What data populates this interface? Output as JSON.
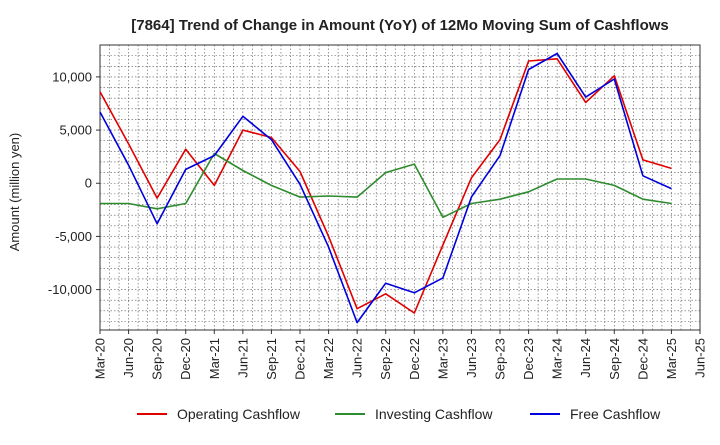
{
  "chart_data": {
    "type": "line",
    "title": "[7864]  Trend of Change in Amount (YoY) of 12Mo Moving Sum of Cashflows",
    "xlabel": "",
    "ylabel": "Amount (million yen)",
    "ylim": [
      -13800,
      13000
    ],
    "yticks": [
      10000,
      5000,
      0,
      -5000,
      -10000
    ],
    "ytick_labels": [
      "10,000",
      "5,000",
      "0",
      "-5,000",
      "-10,000"
    ],
    "grid": true,
    "legend_position": "bottom",
    "categories": [
      "Mar-20",
      "Jun-20",
      "Sep-20",
      "Dec-20",
      "Mar-21",
      "Jun-21",
      "Sep-21",
      "Dec-21",
      "Mar-22",
      "Jun-22",
      "Sep-22",
      "Dec-22",
      "Mar-23",
      "Jun-23",
      "Sep-23",
      "Dec-23",
      "Mar-24",
      "Jun-24",
      "Sep-24",
      "Dec-24",
      "Mar-25",
      "Jun-25"
    ],
    "series": [
      {
        "name": "Operating Cashflow",
        "color": "#e00000",
        "values": [
          8600,
          3700,
          -1400,
          3200,
          -200,
          5000,
          4300,
          1100,
          -5000,
          -11800,
          -10400,
          -12200,
          -5800,
          500,
          4100,
          11500,
          11700,
          7600,
          10100,
          2200,
          1400,
          null
        ]
      },
      {
        "name": "Investing Cashflow",
        "color": "#2e8b2e",
        "values": [
          -1900,
          -1900,
          -2400,
          -1900,
          2800,
          1200,
          -200,
          -1300,
          -1200,
          -1300,
          1000,
          1800,
          -3200,
          -1900,
          -1500,
          -800,
          400,
          400,
          -200,
          -1500,
          -1900,
          null
        ]
      },
      {
        "name": "Free Cashflow",
        "color": "#0000dd",
        "values": [
          6700,
          1700,
          -3800,
          1300,
          2600,
          6300,
          4100,
          -100,
          -6000,
          -13100,
          -9400,
          -10300,
          -8900,
          -1300,
          2600,
          10700,
          12200,
          8100,
          9800,
          700,
          -500,
          null
        ]
      }
    ]
  }
}
